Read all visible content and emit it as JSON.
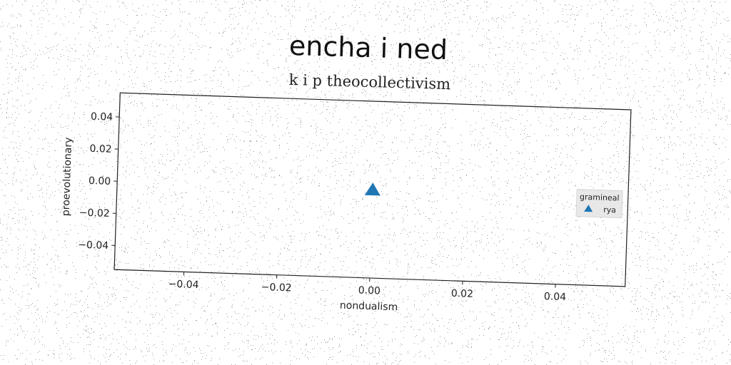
{
  "colors": {
    "series": "#1f77b4",
    "axis": "#222222",
    "legend_bg": "#e8e8e8"
  },
  "chart_data": {
    "type": "scatter",
    "title": "encha i ned",
    "subtitle": "k i p theocollectivism",
    "xlabel": "nondualism",
    "ylabel": "proevolutionary",
    "xlim": [
      -0.055,
      0.055
    ],
    "ylim": [
      -0.055,
      0.055
    ],
    "xticks": [
      -0.04,
      -0.02,
      0.0,
      0.02,
      0.04
    ],
    "xtick_labels": [
      "−0.04",
      "−0.02",
      "0.00",
      "0.02",
      "0.04"
    ],
    "yticks": [
      0.04,
      0.02,
      0.0,
      -0.02,
      -0.04
    ],
    "ytick_labels": [
      "0.04",
      "0.02",
      "0.00",
      "−0.02",
      "−0.04"
    ],
    "grid": false,
    "legend": {
      "title": "gramineal",
      "placement": "right"
    },
    "series": [
      {
        "name": "rya",
        "marker": "triangle",
        "x": [
          0.0
        ],
        "y": [
          0.0
        ]
      }
    ]
  }
}
